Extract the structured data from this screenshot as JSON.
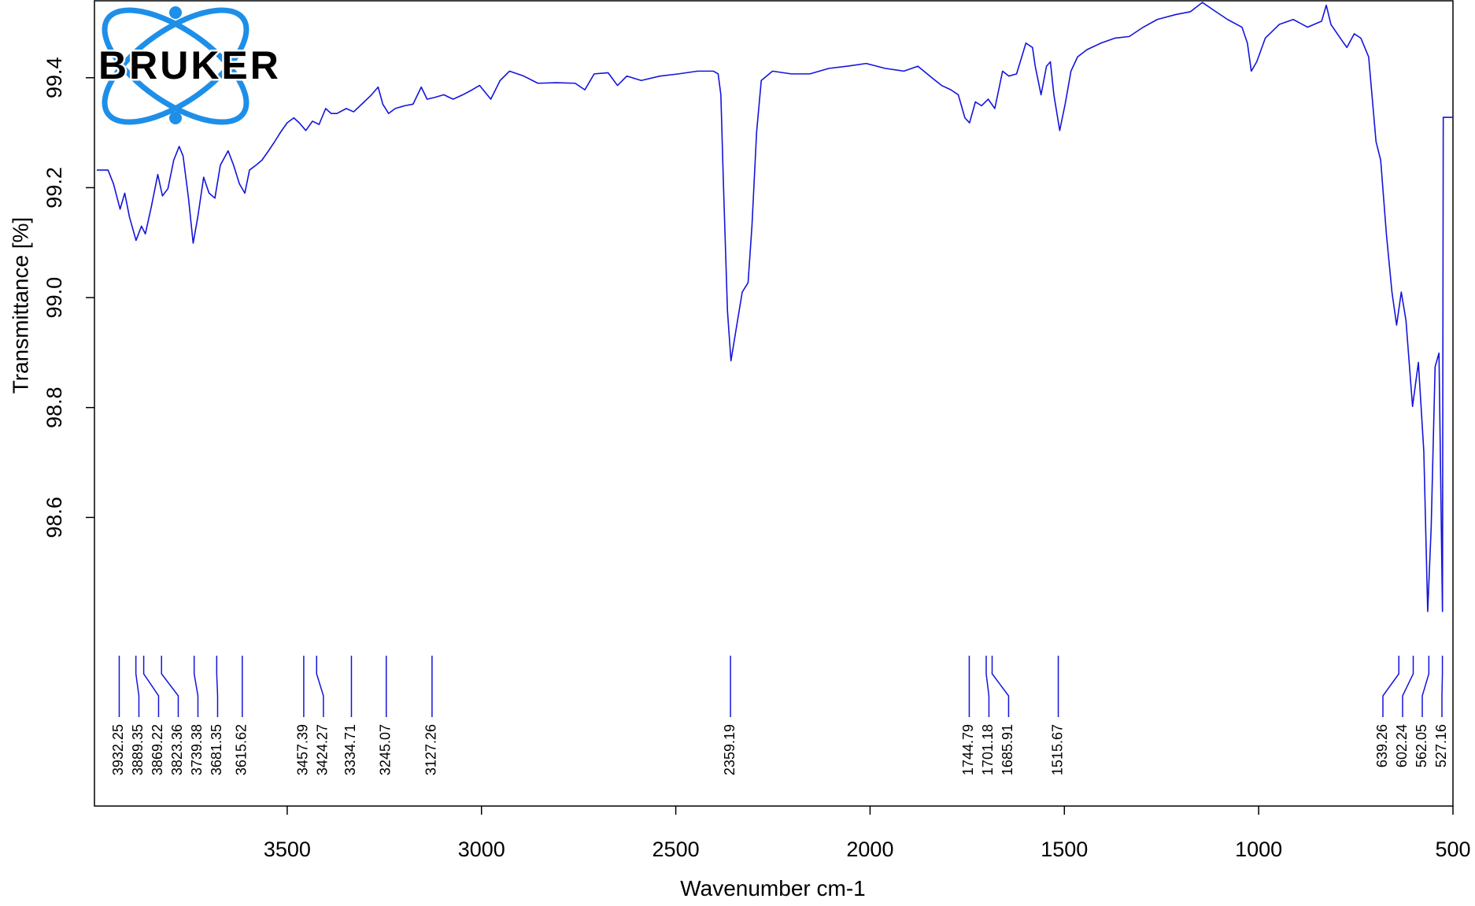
{
  "logo": "BRUKER",
  "chart_data": {
    "type": "line",
    "xlabel": "Wavenumber cm-1",
    "ylabel": "Transmittance [%]",
    "color": "#1414dc",
    "xlim": [
      3996,
      500
    ],
    "ylim": [
      98.075,
      99.54
    ],
    "xticks": [
      3500,
      3000,
      2500,
      2000,
      1500,
      1000,
      500
    ],
    "yticks": [
      98.6,
      98.8,
      {
        "value": 99,
        "label": "99.0"
      },
      99.2,
      99.4
    ],
    "x": [
      3990,
      3961,
      3947,
      3930,
      3918,
      3906,
      3889,
      3875,
      3865,
      3850,
      3833,
      3821,
      3807,
      3792,
      3778,
      3768,
      3754,
      3742,
      3730,
      3715,
      3701,
      3686,
      3672,
      3652,
      3638,
      3623,
      3609,
      3597,
      3580,
      3565,
      3548,
      3532,
      3517,
      3500,
      3483,
      3469,
      3452,
      3435,
      3418,
      3401,
      3387,
      3372,
      3348,
      3329,
      3302,
      3283,
      3266,
      3254,
      3239,
      3222,
      3198,
      3176,
      3155,
      3140,
      3121,
      3097,
      3073,
      3048,
      3024,
      3005,
      2976,
      2952,
      2928,
      2891,
      2855,
      2807,
      2759,
      2734,
      2710,
      2674,
      2650,
      2626,
      2589,
      2541,
      2493,
      2444,
      2403,
      2391,
      2384,
      2377,
      2367,
      2358,
      2343,
      2329,
      2314,
      2304,
      2292,
      2280,
      2251,
      2203,
      2155,
      2106,
      2058,
      2010,
      1961,
      1913,
      1877,
      1841,
      1816,
      1792,
      1773,
      1756,
      1744,
      1729,
      1713,
      1696,
      1679,
      1659,
      1643,
      1623,
      1599,
      1582,
      1575,
      1560,
      1546,
      1536,
      1527,
      1512,
      1498,
      1483,
      1466,
      1442,
      1406,
      1370,
      1333,
      1297,
      1261,
      1213,
      1176,
      1145,
      1116,
      1080,
      1043,
      1029,
      1019,
      1005,
      983,
      947,
      911,
      874,
      838,
      826,
      814,
      790,
      773,
      754,
      737,
      717,
      698,
      686,
      671,
      657,
      645,
      633,
      621,
      604,
      589,
      575,
      565,
      556,
      546,
      536,
      527,
      525,
      500
    ],
    "values": [
      99.232,
      99.232,
      99.207,
      99.161,
      99.19,
      99.147,
      99.104,
      99.13,
      99.116,
      99.164,
      99.224,
      99.185,
      99.198,
      99.25,
      99.275,
      99.258,
      99.181,
      99.099,
      99.147,
      99.219,
      99.19,
      99.181,
      99.241,
      99.267,
      99.241,
      99.207,
      99.19,
      99.232,
      99.241,
      99.25,
      99.267,
      99.284,
      99.301,
      99.318,
      99.327,
      99.318,
      99.304,
      99.321,
      99.315,
      99.344,
      99.335,
      99.335,
      99.344,
      99.338,
      99.356,
      99.369,
      99.383,
      99.352,
      99.335,
      99.344,
      99.349,
      99.352,
      99.383,
      99.361,
      99.364,
      99.369,
      99.361,
      99.369,
      99.378,
      99.386,
      99.361,
      99.395,
      99.412,
      99.403,
      99.39,
      99.391,
      99.39,
      99.378,
      99.407,
      99.409,
      99.386,
      99.403,
      99.395,
      99.403,
      99.407,
      99.412,
      99.412,
      99.407,
      99.369,
      99.198,
      98.976,
      98.885,
      98.95,
      99.01,
      99.027,
      99.13,
      99.301,
      99.395,
      99.412,
      99.407,
      99.407,
      99.417,
      99.421,
      99.426,
      99.417,
      99.412,
      99.421,
      99.4,
      99.386,
      99.378,
      99.369,
      99.327,
      99.318,
      99.356,
      99.349,
      99.361,
      99.344,
      99.412,
      99.403,
      99.407,
      99.463,
      99.455,
      99.421,
      99.369,
      99.421,
      99.429,
      99.369,
      99.304,
      99.352,
      99.412,
      99.438,
      99.451,
      99.463,
      99.472,
      99.475,
      99.492,
      99.506,
      99.515,
      99.52,
      99.537,
      99.523,
      99.506,
      99.492,
      99.463,
      99.412,
      99.429,
      99.472,
      99.497,
      99.506,
      99.492,
      99.503,
      99.532,
      99.497,
      99.472,
      99.455,
      99.48,
      99.472,
      99.438,
      99.284,
      99.25,
      99.113,
      99.01,
      98.95,
      99.01,
      98.959,
      98.802,
      98.882,
      98.72,
      98.429,
      98.583,
      98.874,
      98.899,
      98.429,
      99.328,
      99.328
    ],
    "peaks": [
      3932.25,
      3889.35,
      3869.22,
      3823.36,
      3739.38,
      3681.35,
      3615.62,
      3457.39,
      3424.27,
      3334.71,
      3245.07,
      3127.26,
      2359.19,
      1744.79,
      1701.18,
      1685.91,
      1515.67,
      639.26,
      602.24,
      562.05,
      527.16
    ]
  }
}
